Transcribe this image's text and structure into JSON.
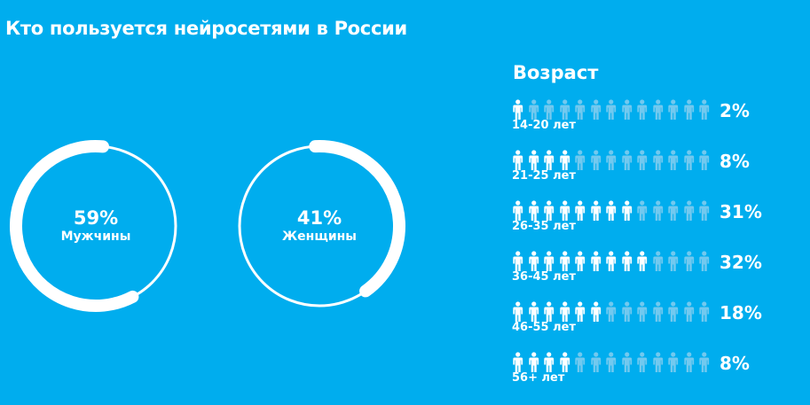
{
  "title": "Кто пользуется нейросетями в России",
  "gender": {
    "male": {
      "percent": "59%",
      "label": "Мужчины",
      "value": 59
    },
    "female": {
      "percent": "41%",
      "label": "Женщины",
      "value": 41
    }
  },
  "age": {
    "title": "Возраст",
    "icons_per_row": 13,
    "rows": [
      {
        "label": "14-20 лет",
        "percent": "2%",
        "filled": 1
      },
      {
        "label": "21-25 лет",
        "percent": "8%",
        "filled": 4
      },
      {
        "label": "26-35 лет",
        "percent": "31%",
        "filled": 8
      },
      {
        "label": "36-45 лет",
        "percent": "32%",
        "filled": 9
      },
      {
        "label": "46-55 лет",
        "percent": "18%",
        "filled": 6
      },
      {
        "label": "56+ лет",
        "percent": "8%",
        "filled": 4
      }
    ]
  },
  "colors": {
    "background": "#00adee",
    "foreground": "#ffffff",
    "icon_faded": "#72c9ef"
  },
  "chart_data": [
    {
      "type": "pie",
      "title": "Кто пользуется нейросетями в России — пол",
      "categories": [
        "Мужчины",
        "Женщины"
      ],
      "values": [
        59,
        41
      ],
      "unit": "%"
    },
    {
      "type": "bar",
      "title": "Возраст",
      "categories": [
        "14-20 лет",
        "21-25 лет",
        "26-35 лет",
        "36-45 лет",
        "46-55 лет",
        "56+ лет"
      ],
      "values": [
        2,
        8,
        31,
        32,
        18,
        8
      ],
      "unit": "%",
      "xlabel": "",
      "ylabel": ""
    }
  ]
}
